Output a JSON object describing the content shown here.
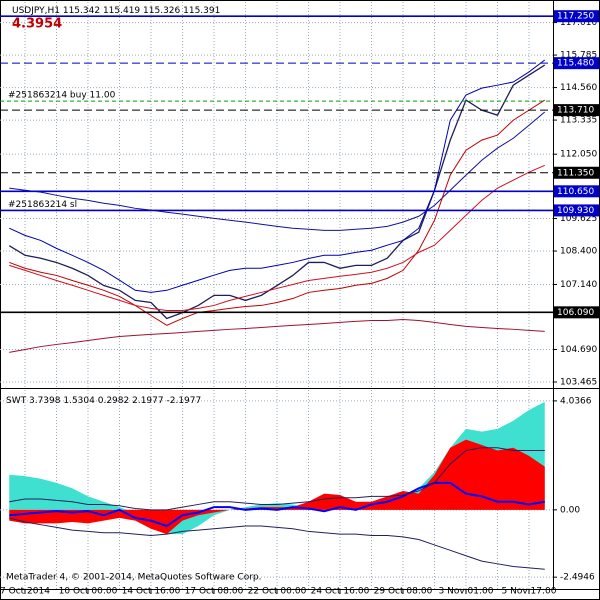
{
  "header": {
    "symbol": "USDJPY,H1",
    "ohlc": [
      115.342,
      115.419,
      115.326,
      115.391
    ],
    "value": 4.3954
  },
  "footer": "MetaTrader 4, © 2001-2014, MetaQuotes Software Corp.",
  "chart_data": [
    {
      "type": "line",
      "grid": true,
      "categories": [
        null,
        "7 Oct 2014",
        null,
        null,
        null,
        "10 Oct 00:00",
        null,
        null,
        null,
        "14 Oct 16:00",
        null,
        null,
        null,
        "17 Oct 08:00",
        null,
        null,
        null,
        "22 Oct 00:00",
        null,
        null,
        null,
        "24 Oct 16:00",
        null,
        null,
        null,
        "29 Oct 08:00",
        null,
        null,
        null,
        "3 Nov 01:00",
        null,
        null,
        null,
        "5 Nov 17:00",
        null
      ],
      "ylim": [
        103.276,
        117.785
      ],
      "yticks": [
        103.465,
        {
          "value": 104.69,
          "label": "104.690"
        },
        {
          "value": 107.14,
          "label": "107.140"
        },
        {
          "value": 108.4,
          "label": "108.400"
        },
        109.625,
        {
          "value": 112.05,
          "label": "112.050"
        },
        113.335,
        {
          "value": 114.56,
          "label": "114.560"
        },
        115.785,
        {
          "value": 117.01,
          "label": "117.010"
        }
      ],
      "levels": [
        {
          "value": 117.25,
          "label": "117.250",
          "color": "#0000c8",
          "dash": false
        },
        {
          "value": 115.48,
          "label": "115.480",
          "color": "#0000c8",
          "dash": true
        },
        {
          "value": 113.71,
          "label": "113.710",
          "color": "#000000",
          "dash": true
        },
        {
          "value": 111.35,
          "label": "111.350",
          "color": "#000000",
          "dash": true
        },
        {
          "value": 110.65,
          "label": "110.650",
          "color": "#0000c8",
          "dash": false
        },
        {
          "value": 109.93,
          "label": "109.930",
          "color": "#0000c8",
          "dash": false
        },
        {
          "value": 106.09,
          "label": "106.090",
          "color": "#000000",
          "dash": false
        }
      ],
      "orders": [
        {
          "label": "#251863214 buy 11.00",
          "value": 114.05,
          "color": "#00a000"
        },
        {
          "label": "#251863214 sl",
          "value": 109.93,
          "color": "#c00000"
        }
      ],
      "series": [
        {
          "color": "#1e1e5a",
          "width": 1.3,
          "values": [
            108.6,
            108.24,
            108.13,
            107.97,
            107.75,
            107.48,
            107.1,
            106.92,
            106.54,
            106.46,
            105.86,
            106.08,
            106.35,
            106.73,
            106.73,
            106.54,
            106.73,
            107.1,
            107.48,
            107.97,
            107.97,
            107.75,
            107.86,
            107.86,
            108.13,
            108.8,
            109.11,
            110.69,
            112.58,
            114.09,
            113.71,
            113.52,
            114.65,
            115.03,
            115.41
          ]
        },
        {
          "color": "#0000b0",
          "width": 1,
          "values": [
            109.26,
            108.99,
            108.8,
            108.5,
            108.24,
            107.97,
            107.67,
            107.3,
            106.92,
            106.84,
            106.92,
            107.11,
            107.3,
            107.49,
            107.67,
            107.75,
            107.75,
            107.86,
            107.97,
            108.12,
            108.24,
            108.24,
            108.35,
            108.43,
            108.62,
            108.8,
            109.26,
            110.69,
            113.33,
            114.28,
            114.54,
            114.65,
            114.77,
            115.15,
            115.6
          ]
        },
        {
          "color": "#1010a0",
          "width": 1,
          "values": [
            110.77,
            110.69,
            110.62,
            110.5,
            110.39,
            110.31,
            110.2,
            110.12,
            110.01,
            109.94,
            109.86,
            109.79,
            109.71,
            109.63,
            109.56,
            109.49,
            109.41,
            109.33,
            109.26,
            109.22,
            109.18,
            109.18,
            109.22,
            109.26,
            109.33,
            109.49,
            109.71,
            110.12,
            110.69,
            111.26,
            111.82,
            112.28,
            112.65,
            113.14,
            113.64
          ]
        },
        {
          "color": "#c00000",
          "width": 1,
          "values": [
            107.97,
            107.75,
            107.6,
            107.48,
            107.29,
            107.11,
            106.92,
            106.69,
            106.35,
            105.97,
            105.6,
            105.86,
            106.09,
            106.16,
            106.24,
            106.31,
            106.35,
            106.46,
            106.61,
            106.84,
            106.92,
            106.99,
            107.11,
            107.18,
            107.37,
            107.67,
            108.43,
            109.56,
            111.26,
            112.2,
            112.58,
            112.77,
            113.33,
            113.71,
            114.09
          ]
        },
        {
          "color": "#d01020",
          "width": 1,
          "values": [
            107.86,
            107.67,
            107.48,
            107.29,
            107.11,
            106.92,
            106.73,
            106.54,
            106.35,
            106.24,
            106.16,
            106.16,
            106.24,
            106.35,
            106.54,
            106.69,
            106.84,
            106.99,
            107.14,
            107.29,
            107.37,
            107.45,
            107.52,
            107.6,
            107.75,
            107.97,
            108.35,
            108.62,
            109.18,
            109.75,
            110.31,
            110.77,
            111.07,
            111.37,
            111.63
          ]
        },
        {
          "color": "#a01030",
          "width": 1,
          "values": [
            104.58,
            104.69,
            104.8,
            104.88,
            104.95,
            105.03,
            105.11,
            105.18,
            105.22,
            105.26,
            105.29,
            105.33,
            105.37,
            105.41,
            105.45,
            105.48,
            105.52,
            105.56,
            105.6,
            105.63,
            105.67,
            105.71,
            105.75,
            105.78,
            105.78,
            105.82,
            105.78,
            105.71,
            105.63,
            105.56,
            105.52,
            105.48,
            105.45,
            105.41,
            105.37
          ]
        }
      ]
    },
    {
      "type": "line",
      "grid": true,
      "title": "SWT",
      "readings": [
        3.7398,
        1.5304,
        0.2982,
        2.1977,
        -2.1977
      ],
      "ylim": [
        -2.97,
        4.44
      ],
      "yticks": [
        {
          "value": -2.4946,
          "label": "-2.4946"
        },
        {
          "value": 0,
          "label": "0.00"
        },
        4.0366
      ],
      "series": [
        {
          "kind": "area",
          "color": "#40e0d0",
          "values": [
            1.3,
            1.25,
            1.15,
            1.0,
            0.8,
            0.5,
            0.3,
            0.1,
            -0.1,
            -0.5,
            -0.9,
            -0.9,
            -0.6,
            -0.2,
            0.0,
            0.1,
            0.2,
            0.25,
            0.2,
            0.1,
            0.05,
            0.1,
            0.15,
            0.2,
            0.3,
            0.5,
            0.8,
            1.4,
            2.3,
            3.0,
            2.9,
            3.0,
            3.3,
            3.7,
            4.0
          ]
        },
        {
          "kind": "area",
          "color": "#ff0000",
          "values": [
            -0.4,
            -0.5,
            -0.5,
            -0.5,
            -0.45,
            -0.5,
            -0.4,
            -0.3,
            -0.4,
            -0.7,
            -0.9,
            -0.4,
            -0.2,
            -0.1,
            0.0,
            0.05,
            0.1,
            0.1,
            0.1,
            0.3,
            0.6,
            0.55,
            0.3,
            0.3,
            0.5,
            0.7,
            0.6,
            1.3,
            2.3,
            2.6,
            2.4,
            2.2,
            2.3,
            2.0,
            1.6
          ]
        },
        {
          "kind": "line",
          "color": "#0000ff",
          "width": 2,
          "values": [
            -0.2,
            -0.15,
            -0.1,
            -0.05,
            -0.1,
            -0.05,
            -0.2,
            0.0,
            -0.3,
            -0.4,
            -0.6,
            -0.2,
            -0.1,
            0.1,
            0.1,
            0.0,
            0.05,
            0.0,
            0.1,
            0.05,
            -0.05,
            0.1,
            0.0,
            0.2,
            0.3,
            0.5,
            0.8,
            1.0,
            1.0,
            0.6,
            0.5,
            0.3,
            0.3,
            0.2,
            0.3
          ]
        },
        {
          "kind": "line",
          "color": "#202060",
          "width": 1,
          "values": [
            0.3,
            0.4,
            0.4,
            0.35,
            0.3,
            0.2,
            0.2,
            0.15,
            0.05,
            0.0,
            0.0,
            0.1,
            0.2,
            0.3,
            0.3,
            0.25,
            0.2,
            0.2,
            0.25,
            0.3,
            0.4,
            0.45,
            0.45,
            0.5,
            0.5,
            0.55,
            0.7,
            1.0,
            1.7,
            2.2,
            2.3,
            2.3,
            2.2,
            2.2,
            2.2
          ]
        },
        {
          "kind": "line",
          "color": "#202060",
          "width": 1,
          "values": [
            -0.3,
            -0.45,
            -0.55,
            -0.65,
            -0.75,
            -0.8,
            -0.85,
            -0.85,
            -0.9,
            -0.95,
            -0.9,
            -0.8,
            -0.75,
            -0.7,
            -0.65,
            -0.6,
            -0.6,
            -0.65,
            -0.7,
            -0.8,
            -0.85,
            -0.9,
            -0.9,
            -0.95,
            -0.95,
            -1.0,
            -1.1,
            -1.3,
            -1.5,
            -1.7,
            -1.9,
            -2.0,
            -2.1,
            -2.15,
            -2.2
          ]
        }
      ]
    }
  ]
}
